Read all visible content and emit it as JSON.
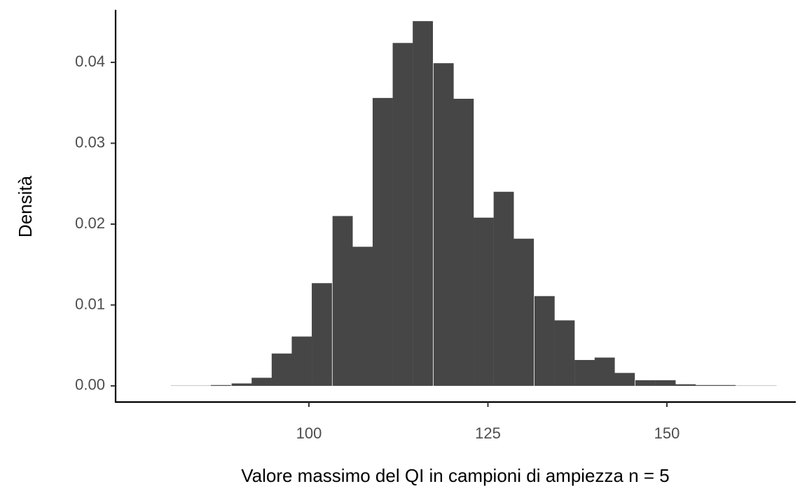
{
  "chart_data": {
    "type": "bar",
    "subtype": "histogram",
    "xlabel": "Valore massimo del QI in campioni di ampiezza n = 5",
    "ylabel": "Densità",
    "xlim": [
      73,
      168
    ],
    "ylim": [
      -0.002,
      0.0465
    ],
    "xticks": [
      100,
      125,
      150
    ],
    "xtick_labels": [
      "100",
      "125",
      "150"
    ],
    "yticks": [
      0.0,
      0.01,
      0.02,
      0.03,
      0.04
    ],
    "ytick_labels": [
      "0.00",
      "0.01",
      "0.02",
      "0.03",
      "0.04"
    ],
    "bin_width": 2.82,
    "bins": [
      {
        "x0": 80.7,
        "value": 2e-05
      },
      {
        "x0": 83.5,
        "value": 0.0
      },
      {
        "x0": 86.3,
        "value": 0.0001
      },
      {
        "x0": 89.2,
        "value": 0.0003
      },
      {
        "x0": 92.0,
        "value": 0.001
      },
      {
        "x0": 94.8,
        "value": 0.004
      },
      {
        "x0": 97.6,
        "value": 0.0061
      },
      {
        "x0": 100.4,
        "value": 0.0127
      },
      {
        "x0": 103.3,
        "value": 0.021
      },
      {
        "x0": 106.1,
        "value": 0.0172
      },
      {
        "x0": 108.9,
        "value": 0.0356
      },
      {
        "x0": 111.7,
        "value": 0.0424
      },
      {
        "x0": 114.5,
        "value": 0.0451
      },
      {
        "x0": 117.4,
        "value": 0.0399
      },
      {
        "x0": 120.2,
        "value": 0.0355
      },
      {
        "x0": 123.0,
        "value": 0.0208
      },
      {
        "x0": 125.8,
        "value": 0.024
      },
      {
        "x0": 128.6,
        "value": 0.0182
      },
      {
        "x0": 131.5,
        "value": 0.0111
      },
      {
        "x0": 134.3,
        "value": 0.0081
      },
      {
        "x0": 137.1,
        "value": 0.0032
      },
      {
        "x0": 139.9,
        "value": 0.0035
      },
      {
        "x0": 142.7,
        "value": 0.0016
      },
      {
        "x0": 145.6,
        "value": 0.0007
      },
      {
        "x0": 148.4,
        "value": 0.0007
      },
      {
        "x0": 151.2,
        "value": 0.0002
      },
      {
        "x0": 154.0,
        "value": 0.0001
      },
      {
        "x0": 156.8,
        "value": 0.0001
      },
      {
        "x0": 159.7,
        "value": 2e-05
      },
      {
        "x0": 162.5,
        "value": 2e-05
      }
    ],
    "bar_color": "#464646",
    "grid": false
  }
}
